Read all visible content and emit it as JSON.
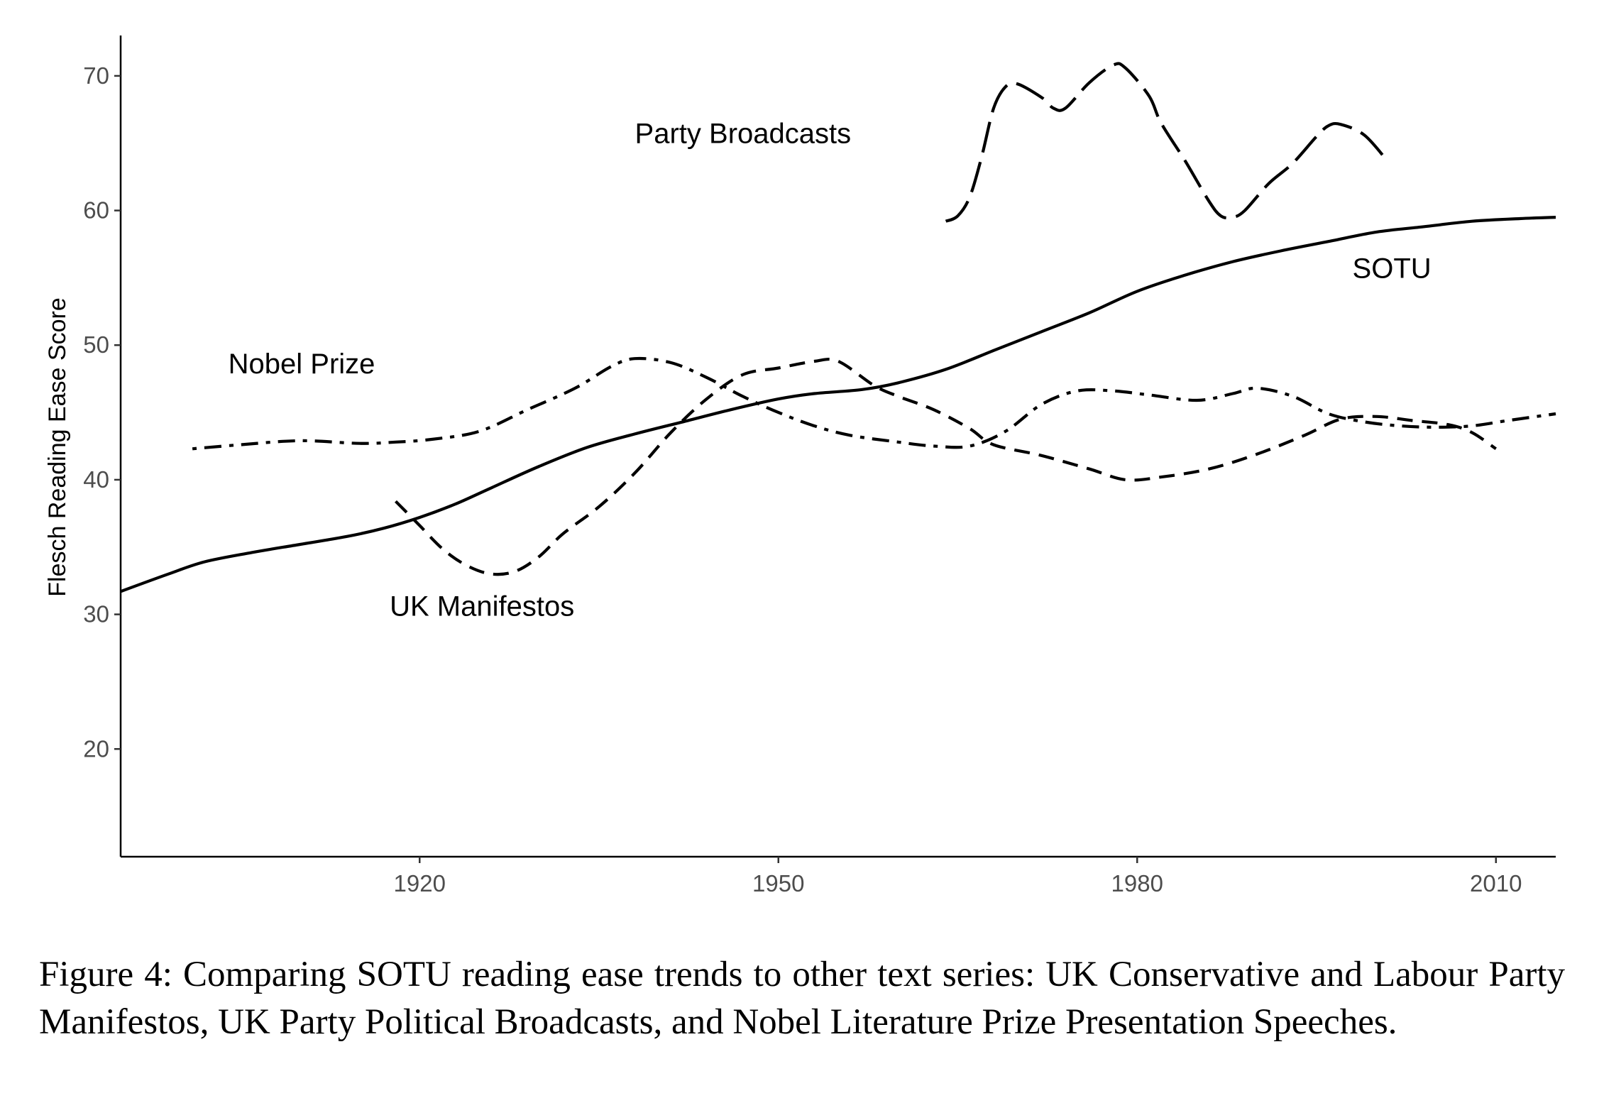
{
  "chart_data": {
    "type": "line",
    "title": "",
    "xlabel": "",
    "ylabel": "Flesch Reading Ease Score",
    "xlim": [
      1895,
      2015
    ],
    "ylim": [
      12,
      73
    ],
    "xticks": [
      1920,
      1950,
      1980,
      2010
    ],
    "yticks": [
      20,
      30,
      40,
      50,
      60,
      70
    ],
    "grid": false,
    "legend": "none",
    "series": [
      {
        "name": "SOTU",
        "style": "solid",
        "points": [
          [
            1895,
            31.7
          ],
          [
            1899,
            33
          ],
          [
            1902,
            33.9
          ],
          [
            1906,
            34.6
          ],
          [
            1910,
            35.2
          ],
          [
            1914,
            35.8
          ],
          [
            1917,
            36.4
          ],
          [
            1920,
            37.2
          ],
          [
            1923,
            38.2
          ],
          [
            1926,
            39.4
          ],
          [
            1930,
            41
          ],
          [
            1934,
            42.4
          ],
          [
            1938,
            43.4
          ],
          [
            1942,
            44.3
          ],
          [
            1946,
            45.2
          ],
          [
            1950,
            46
          ],
          [
            1953,
            46.4
          ],
          [
            1957,
            46.7
          ],
          [
            1960,
            47.2
          ],
          [
            1964,
            48.2
          ],
          [
            1968,
            49.6
          ],
          [
            1972,
            51
          ],
          [
            1976,
            52.4
          ],
          [
            1980,
            54
          ],
          [
            1984,
            55.2
          ],
          [
            1988,
            56.2
          ],
          [
            1992,
            57
          ],
          [
            1996,
            57.7
          ],
          [
            2000,
            58.4
          ],
          [
            2004,
            58.8
          ],
          [
            2008,
            59.2
          ],
          [
            2012,
            59.4
          ],
          [
            2015,
            59.5
          ]
        ]
      },
      {
        "name": "UK Manifestos",
        "style": "dashed",
        "points": [
          [
            1918,
            38.4
          ],
          [
            1920,
            36.6
          ],
          [
            1922,
            34.8
          ],
          [
            1924,
            33.6
          ],
          [
            1926,
            33
          ],
          [
            1928,
            33.2
          ],
          [
            1930,
            34.3
          ],
          [
            1932,
            36
          ],
          [
            1935,
            38
          ],
          [
            1938,
            40.5
          ],
          [
            1941,
            43.5
          ],
          [
            1944,
            46
          ],
          [
            1947,
            47.8
          ],
          [
            1950,
            48.3
          ],
          [
            1953,
            48.8
          ],
          [
            1955,
            48.8
          ],
          [
            1958,
            47
          ],
          [
            1960,
            46.2
          ],
          [
            1963,
            45.2
          ],
          [
            1966,
            43.8
          ],
          [
            1968,
            42.6
          ],
          [
            1972,
            41.8
          ],
          [
            1976,
            40.8
          ],
          [
            1979,
            40
          ],
          [
            1982,
            40.2
          ],
          [
            1986,
            40.8
          ],
          [
            1990,
            41.9
          ],
          [
            1994,
            43.3
          ],
          [
            1997,
            44.5
          ],
          [
            2000,
            44.7
          ],
          [
            2003,
            44.4
          ],
          [
            2006,
            44.1
          ],
          [
            2008,
            43.5
          ],
          [
            2010,
            42.3
          ]
        ]
      },
      {
        "name": "Party Broadcasts",
        "style": "longdash",
        "points": [
          [
            1964,
            59.2
          ],
          [
            1965,
            59.6
          ],
          [
            1966,
            61
          ],
          [
            1967,
            64
          ],
          [
            1968,
            67.6
          ],
          [
            1969,
            69.2
          ],
          [
            1970,
            69.4
          ],
          [
            1972,
            68.4
          ],
          [
            1973,
            67.6
          ],
          [
            1974,
            67.6
          ],
          [
            1976,
            69.5
          ],
          [
            1978,
            70.8
          ],
          [
            1979,
            70.6
          ],
          [
            1981,
            68.5
          ],
          [
            1982,
            66.5
          ],
          [
            1984,
            63.7
          ],
          [
            1986,
            60.7
          ],
          [
            1987,
            59.6
          ],
          [
            1988,
            59.5
          ],
          [
            1989,
            60
          ],
          [
            1991,
            62
          ],
          [
            1993,
            63.5
          ],
          [
            1995,
            65.5
          ],
          [
            1996,
            66.3
          ],
          [
            1997,
            66.4
          ],
          [
            1999,
            65.6
          ],
          [
            2001,
            63.6
          ]
        ]
      },
      {
        "name": "Nobel Prize",
        "style": "dotdash",
        "points": [
          [
            1901,
            42.3
          ],
          [
            1905,
            42.6
          ],
          [
            1910,
            42.9
          ],
          [
            1915,
            42.7
          ],
          [
            1918,
            42.8
          ],
          [
            1921,
            43
          ],
          [
            1925,
            43.6
          ],
          [
            1929,
            45.2
          ],
          [
            1933,
            46.8
          ],
          [
            1936,
            48.4
          ],
          [
            1938,
            49
          ],
          [
            1941,
            48.7
          ],
          [
            1944,
            47.6
          ],
          [
            1947,
            46.2
          ],
          [
            1950,
            45
          ],
          [
            1953,
            44
          ],
          [
            1956,
            43.3
          ],
          [
            1960,
            42.8
          ],
          [
            1963,
            42.5
          ],
          [
            1966,
            42.5
          ],
          [
            1969,
            43.6
          ],
          [
            1972,
            45.6
          ],
          [
            1975,
            46.6
          ],
          [
            1978,
            46.6
          ],
          [
            1981,
            46.3
          ],
          [
            1985,
            45.9
          ],
          [
            1988,
            46.4
          ],
          [
            1990,
            46.8
          ],
          [
            1993,
            46.2
          ],
          [
            1996,
            44.9
          ],
          [
            1999,
            44.3
          ],
          [
            2002,
            44
          ],
          [
            2005,
            43.9
          ],
          [
            2008,
            44
          ],
          [
            2011,
            44.4
          ],
          [
            2015,
            44.9
          ]
        ]
      }
    ],
    "annotations": [
      {
        "text": "Party Broadcasts",
        "x": 1938,
        "y": 65
      },
      {
        "text": "SOTU",
        "x": 1998,
        "y": 55
      },
      {
        "text": "Nobel Prize",
        "x": 1904,
        "y": 47.9
      },
      {
        "text": "UK Manifestos",
        "x": 1917.5,
        "y": 29.9
      }
    ]
  },
  "caption": "Figure 4:  Comparing SOTU reading ease trends to other text series:  UK Conservative and Labour Party Manifestos, UK Party Political Broadcasts, and Nobel Literature Prize Presentation Speeches."
}
